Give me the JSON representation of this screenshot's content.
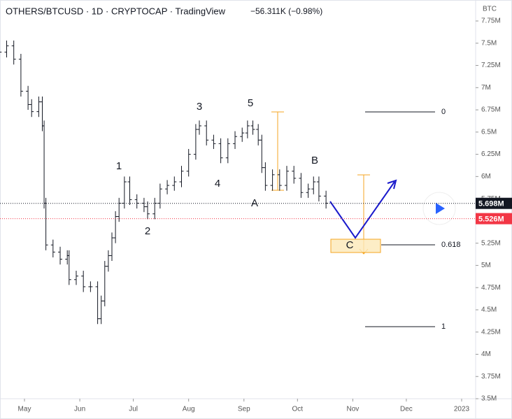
{
  "chart_data": {
    "type": "ohlc",
    "title": "OTHERS/BTCUSD · 1D · CRYPTOCAP · TradingView",
    "change": "−56.311K (−0.98%)",
    "axis_unit": "BTC",
    "x": [
      107,
      111,
      115,
      119,
      123,
      125,
      129,
      131,
      132,
      133,
      137,
      141,
      145,
      146,
      150,
      154,
      158,
      162,
      164,
      166,
      168,
      170,
      172,
      174,
      177,
      180,
      184,
      188,
      190,
      194,
      197,
      201,
      205,
      209,
      213,
      217,
      219,
      223,
      227,
      231,
      235,
      239,
      243,
      246,
      249,
      252,
      254,
      256,
      260,
      264,
      268,
      272,
      276,
      280,
      283,
      286,
      290
    ],
    "open": [
      7.35,
      7.4,
      7.47,
      7.32,
      6.96,
      6.81,
      6.73,
      6.84,
      6.57,
      5.7,
      5.23,
      5.15,
      5.07,
      5.11,
      4.84,
      4.88,
      4.76,
      4.76,
      4.4,
      4.6,
      4.99,
      5.11,
      5.31,
      5.55,
      5.7,
      5.94,
      5.74,
      5.7,
      5.66,
      5.58,
      5.7,
      5.86,
      5.9,
      5.94,
      6.06,
      6.25,
      6.53,
      6.57,
      6.41,
      6.37,
      6.21,
      6.37,
      6.45,
      6.49,
      6.57,
      6.53,
      6.41,
      6.1,
      5.9,
      6.02,
      5.9,
      6.06,
      5.98,
      5.82,
      5.86,
      5.94,
      5.78
    ],
    "high": [
      7.46,
      7.53,
      7.53,
      7.38,
      7.02,
      6.87,
      6.9,
      6.9,
      6.63,
      5.76,
      5.29,
      5.21,
      5.17,
      5.17,
      4.94,
      4.94,
      4.82,
      4.82,
      4.66,
      5.05,
      5.17,
      5.37,
      5.61,
      5.76,
      6.0,
      6.0,
      5.8,
      5.76,
      5.72,
      5.76,
      5.92,
      5.96,
      6.0,
      6.12,
      6.31,
      6.59,
      6.63,
      6.63,
      6.47,
      6.43,
      6.43,
      6.51,
      6.55,
      6.63,
      6.63,
      6.59,
      6.47,
      6.16,
      6.08,
      6.08,
      6.12,
      6.12,
      6.04,
      5.92,
      6.0,
      6.0,
      5.84
    ],
    "low": [
      7.29,
      7.34,
      7.26,
      6.9,
      6.75,
      6.67,
      6.67,
      6.51,
      5.64,
      5.17,
      5.09,
      5.01,
      5.01,
      4.78,
      4.78,
      4.7,
      4.7,
      4.34,
      4.34,
      4.54,
      4.93,
      5.05,
      5.25,
      5.49,
      5.64,
      5.68,
      5.64,
      5.6,
      5.52,
      5.52,
      5.64,
      5.8,
      5.84,
      5.88,
      6.0,
      6.19,
      6.47,
      6.35,
      6.31,
      6.15,
      6.15,
      6.31,
      6.39,
      6.43,
      6.47,
      6.35,
      6.04,
      5.84,
      5.84,
      5.84,
      5.84,
      5.92,
      5.76,
      5.76,
      5.8,
      5.72,
      5.64
    ],
    "close": [
      7.4,
      7.47,
      7.32,
      6.96,
      6.81,
      6.73,
      6.84,
      6.57,
      5.7,
      5.23,
      5.15,
      5.07,
      5.11,
      4.84,
      4.88,
      4.76,
      4.76,
      4.4,
      4.6,
      4.99,
      5.11,
      5.31,
      5.55,
      5.7,
      5.94,
      5.74,
      5.7,
      5.66,
      5.58,
      5.7,
      5.86,
      5.9,
      5.94,
      6.06,
      6.25,
      6.53,
      6.57,
      6.41,
      6.37,
      6.21,
      6.37,
      6.45,
      6.49,
      6.57,
      6.53,
      6.41,
      6.1,
      5.9,
      6.02,
      5.9,
      6.06,
      5.98,
      5.82,
      5.86,
      5.94,
      5.78,
      5.7
    ],
    "color": "#131722",
    "xlim": [
      107,
      374
    ],
    "xticks": [
      {
        "value": 121,
        "label": "May"
      },
      {
        "value": 152,
        "label": "Jun"
      },
      {
        "value": 182,
        "label": "Jul"
      },
      {
        "value": 213,
        "label": "Aug"
      },
      {
        "value": 244,
        "label": "Sep"
      },
      {
        "value": 274,
        "label": "Oct"
      },
      {
        "value": 305,
        "label": "Nov"
      },
      {
        "value": 335,
        "label": "Dec"
      },
      {
        "value": 366,
        "label": "2023"
      }
    ],
    "ylim": [
      3.5,
      7.75
    ],
    "yticks": [
      {
        "value": 7.75,
        "label": "7.75M"
      },
      {
        "value": 7.5,
        "label": "7.5M"
      },
      {
        "value": 7.25,
        "label": "7.25M"
      },
      {
        "value": 7,
        "label": "7M"
      },
      {
        "value": 6.75,
        "label": "6.75M"
      },
      {
        "value": 6.5,
        "label": "6.5M"
      },
      {
        "value": 6.25,
        "label": "6.25M"
      },
      {
        "value": 6,
        "label": "6M"
      },
      {
        "value": 5.75,
        "label": "5.75M"
      },
      {
        "value": 5.5,
        "label": "5.5M"
      },
      {
        "value": 5.25,
        "label": "5.25M"
      },
      {
        "value": 5,
        "label": "5M"
      },
      {
        "value": 4.75,
        "label": "4.75M"
      },
      {
        "value": 4.5,
        "label": "4.5M"
      },
      {
        "value": 4.25,
        "label": "4.25M"
      },
      {
        "value": 4,
        "label": "4M"
      },
      {
        "value": 3.75,
        "label": "3.75M"
      },
      {
        "value": 3.5,
        "label": "3.5M"
      }
    ],
    "price_labels": [
      {
        "value": 5.698,
        "label": "5.698M",
        "color": "#131722"
      },
      {
        "value": 5.526,
        "label": "5.526M",
        "color": "#f23645"
      }
    ],
    "wave_labels": [
      "1",
      "2",
      "3",
      "4",
      "5",
      "A",
      "B",
      "C"
    ],
    "fib_levels": [
      0,
      0.618,
      1
    ]
  }
}
